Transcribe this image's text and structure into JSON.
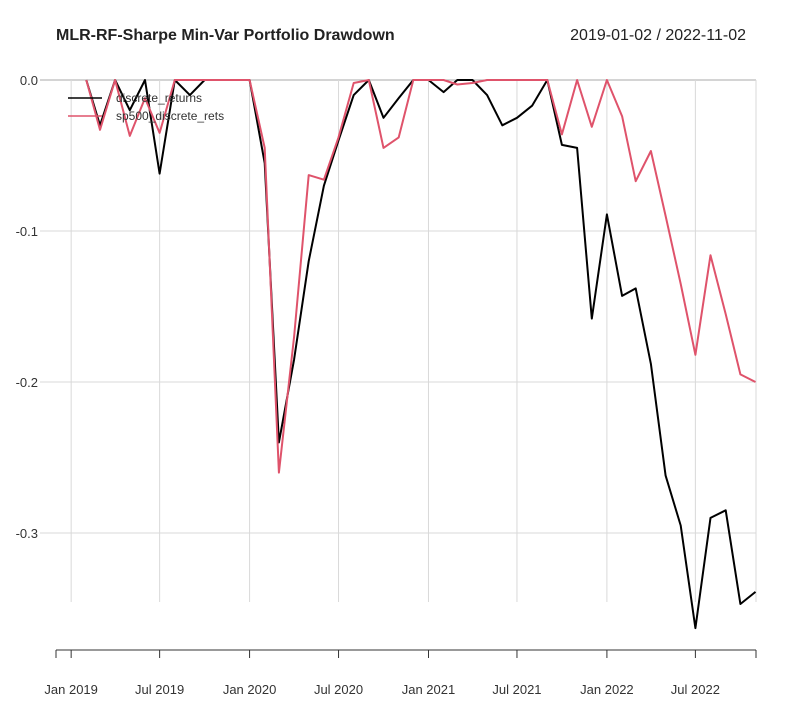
{
  "chart_data": {
    "type": "line",
    "title": "MLR-RF-Sharpe Min-Var Portfolio Drawdown",
    "date_range": "2019-01-02 / 2022-11-02",
    "xlabel": "",
    "ylabel": "",
    "ylim": [
      -0.38,
      0.0
    ],
    "y_ticks": [
      0.0,
      -0.1,
      -0.2,
      -0.3
    ],
    "y_tick_labels": [
      "0.0",
      "-0.1",
      "-0.2",
      "-0.3"
    ],
    "x_ticks": [
      "2019-01-01",
      "2019-07-01",
      "2020-01-01",
      "2020-07-01",
      "2021-01-01",
      "2021-07-01",
      "2022-01-01",
      "2022-07-01"
    ],
    "x_tick_labels": [
      "Jan 2019",
      "Jul 2019",
      "Jan 2020",
      "Jul 2020",
      "Jan 2021",
      "Jul 2021",
      "Jan 2022",
      "Jul 2022"
    ],
    "xlim": [
      "2018-12-01",
      "2022-11-02"
    ],
    "grid": true,
    "legend_position": "top-left",
    "series": [
      {
        "name": "discrete_returns",
        "color": "#000000",
        "points": [
          [
            "2019-02-01",
            0.0
          ],
          [
            "2019-03-01",
            -0.03
          ],
          [
            "2019-04-01",
            0.0
          ],
          [
            "2019-05-01",
            -0.02
          ],
          [
            "2019-06-01",
            0.0
          ],
          [
            "2019-07-01",
            -0.062
          ],
          [
            "2019-08-01",
            0.0
          ],
          [
            "2019-09-01",
            -0.01
          ],
          [
            "2019-10-01",
            0.0
          ],
          [
            "2019-11-01",
            0.0
          ],
          [
            "2019-12-01",
            0.0
          ],
          [
            "2020-01-01",
            0.0
          ],
          [
            "2020-02-01",
            -0.055
          ],
          [
            "2020-03-01",
            -0.24
          ],
          [
            "2020-04-01",
            -0.185
          ],
          [
            "2020-05-01",
            -0.12
          ],
          [
            "2020-06-01",
            -0.07
          ],
          [
            "2020-07-01",
            -0.04
          ],
          [
            "2020-08-01",
            -0.01
          ],
          [
            "2020-09-01",
            0.0
          ],
          [
            "2020-10-01",
            -0.025
          ],
          [
            "2020-11-01",
            -0.012
          ],
          [
            "2020-12-01",
            0.0
          ],
          [
            "2021-01-01",
            0.0
          ],
          [
            "2021-02-01",
            -0.008
          ],
          [
            "2021-03-01",
            0.0
          ],
          [
            "2021-04-01",
            0.0
          ],
          [
            "2021-05-01",
            -0.01
          ],
          [
            "2021-06-01",
            -0.03
          ],
          [
            "2021-07-01",
            -0.025
          ],
          [
            "2021-08-01",
            -0.017
          ],
          [
            "2021-09-01",
            0.0
          ],
          [
            "2021-10-01",
            -0.043
          ],
          [
            "2021-11-01",
            -0.045
          ],
          [
            "2021-12-01",
            -0.158
          ],
          [
            "2022-01-01",
            -0.089
          ],
          [
            "2022-02-01",
            -0.143
          ],
          [
            "2022-03-01",
            -0.138
          ],
          [
            "2022-04-01",
            -0.188
          ],
          [
            "2022-05-01",
            -0.262
          ],
          [
            "2022-06-01",
            -0.295
          ],
          [
            "2022-07-01",
            -0.363
          ],
          [
            "2022-08-01",
            -0.29
          ],
          [
            "2022-09-01",
            -0.285
          ],
          [
            "2022-10-01",
            -0.347
          ],
          [
            "2022-11-01",
            -0.339
          ]
        ]
      },
      {
        "name": "sp500_discrete_rets",
        "color": "#DF536B",
        "points": [
          [
            "2019-02-01",
            0.0
          ],
          [
            "2019-03-01",
            -0.033
          ],
          [
            "2019-04-01",
            0.0
          ],
          [
            "2019-05-01",
            -0.037
          ],
          [
            "2019-06-01",
            -0.012
          ],
          [
            "2019-07-01",
            -0.035
          ],
          [
            "2019-08-01",
            0.0
          ],
          [
            "2019-09-01",
            0.0
          ],
          [
            "2019-10-01",
            0.0
          ],
          [
            "2019-11-01",
            0.0
          ],
          [
            "2019-12-01",
            0.0
          ],
          [
            "2020-01-01",
            0.0
          ],
          [
            "2020-02-01",
            -0.045
          ],
          [
            "2020-03-01",
            -0.26
          ],
          [
            "2020-04-01",
            -0.17
          ],
          [
            "2020-05-01",
            -0.063
          ],
          [
            "2020-06-01",
            -0.066
          ],
          [
            "2020-07-01",
            -0.038
          ],
          [
            "2020-08-01",
            -0.002
          ],
          [
            "2020-09-01",
            0.0
          ],
          [
            "2020-10-01",
            -0.045
          ],
          [
            "2020-11-01",
            -0.038
          ],
          [
            "2020-12-01",
            0.0
          ],
          [
            "2021-01-01",
            0.0
          ],
          [
            "2021-02-01",
            0.0
          ],
          [
            "2021-03-01",
            -0.003
          ],
          [
            "2021-04-01",
            -0.002
          ],
          [
            "2021-05-01",
            0.0
          ],
          [
            "2021-06-01",
            0.0
          ],
          [
            "2021-07-01",
            0.0
          ],
          [
            "2021-08-01",
            0.0
          ],
          [
            "2021-09-01",
            0.0
          ],
          [
            "2021-10-01",
            -0.036
          ],
          [
            "2021-11-01",
            0.0
          ],
          [
            "2021-12-01",
            -0.031
          ],
          [
            "2022-01-01",
            0.0
          ],
          [
            "2022-02-01",
            -0.024
          ],
          [
            "2022-03-01",
            -0.067
          ],
          [
            "2022-04-01",
            -0.047
          ],
          [
            "2022-05-01",
            -0.09
          ],
          [
            "2022-06-01",
            -0.135
          ],
          [
            "2022-07-01",
            -0.182
          ],
          [
            "2022-08-01",
            -0.116
          ],
          [
            "2022-09-01",
            -0.155
          ],
          [
            "2022-10-01",
            -0.195
          ],
          [
            "2022-11-01",
            -0.2
          ]
        ]
      }
    ]
  }
}
